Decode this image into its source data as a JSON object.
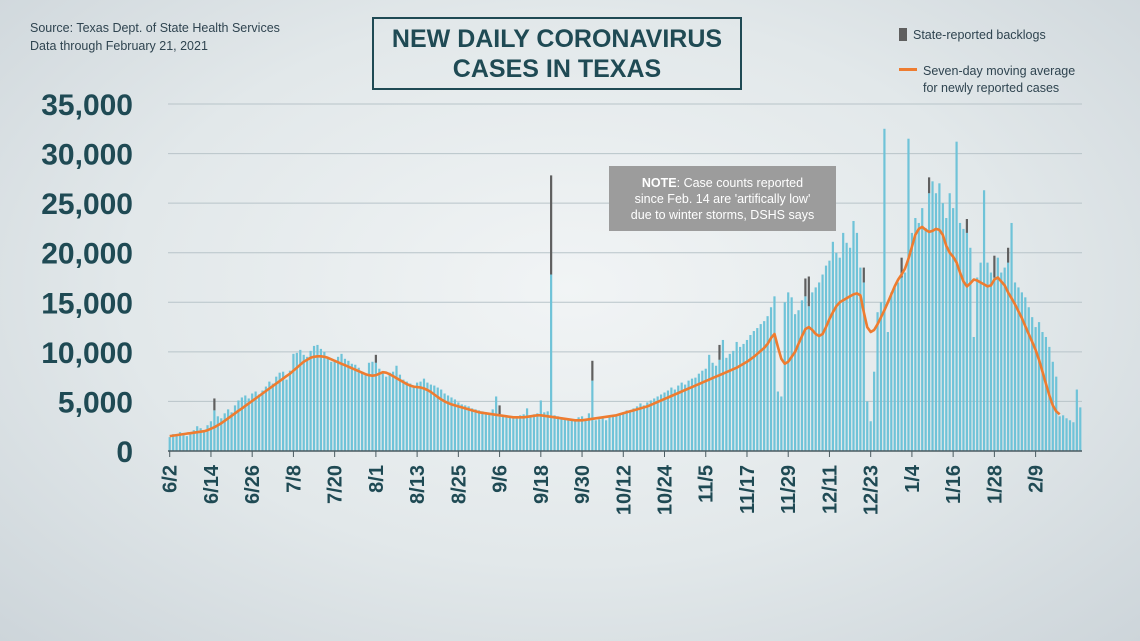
{
  "source": {
    "line1": "Source: Texas Dept. of State Health Services",
    "line2": "Data through  February 21, 2021"
  },
  "title": {
    "line1": "NEW DAILY CORONAVIRUS",
    "line2": "CASES IN TEXAS"
  },
  "legend": {
    "backlogs": "State-reported backlogs",
    "average_line1": "Seven-day moving average",
    "average_line2": "for newly reported cases"
  },
  "note": {
    "bold": "NOTE",
    "text1": ": Case counts reported",
    "text2": "since Feb. 14 are 'artifically low'",
    "text3": "due to winter storms, DSHS says"
  },
  "colors": {
    "bars": "#6fc3d8",
    "backlog": "#5f5f5f",
    "average": "#ee7c30",
    "axis_text": "#1f4a54",
    "grid": "#b8c4c9"
  },
  "chart_data": {
    "type": "bar",
    "ylim": [
      0,
      35000
    ],
    "yticks": [
      0,
      5000,
      10000,
      15000,
      20000,
      25000,
      30000,
      35000
    ],
    "ytick_labels": [
      "0",
      "5,000",
      "10,000",
      "15,000",
      "20,000",
      "25,000",
      "30,000",
      "35,000"
    ],
    "x_start": "2020-06-02",
    "xtick_labels": [
      "6/2",
      "6/14",
      "6/26",
      "7/8",
      "7/20",
      "8/1",
      "8/13",
      "8/25",
      "9/6",
      "9/18",
      "9/30",
      "10/12",
      "10/24",
      "11/5",
      "11/17",
      "11/29",
      "12/11",
      "12/23",
      "1/4",
      "1/16",
      "1/28",
      "2/9"
    ],
    "grid": true,
    "legend_position": "top-right",
    "series": [
      {
        "name": "State-reported backlogs",
        "type": "bar",
        "values": [
          1400,
          1700,
          1600,
          1900,
          1700,
          1500,
          1800,
          2100,
          2500,
          2300,
          2000,
          2600,
          3000,
          4100,
          3500,
          3300,
          3800,
          4200,
          3900,
          4600,
          5100,
          5400,
          5600,
          5300,
          5800,
          6000,
          5700,
          6100,
          6500,
          7000,
          6800,
          7500,
          7900,
          8000,
          7200,
          8100,
          9800,
          9900,
          10200,
          9700,
          9500,
          10100,
          10600,
          10700,
          10300,
          10000,
          9400,
          9000,
          9200,
          9500,
          9800,
          9300,
          9100,
          8800,
          8700,
          8400,
          8000,
          7800,
          8900,
          9000,
          8900,
          8300,
          7900,
          7500,
          7900,
          8000,
          8600,
          7700,
          7200,
          7000,
          6800,
          6500,
          6900,
          7000,
          7300,
          6900,
          6700,
          6600,
          6400,
          6200,
          5800,
          5600,
          5400,
          5200,
          4900,
          4700,
          4600,
          4500,
          4300,
          4200,
          4100,
          4000,
          3900,
          3800,
          4200,
          5500,
          3700,
          3600,
          3500,
          3400,
          3300,
          3500,
          3600,
          3700,
          4300,
          3600,
          3700,
          3800,
          5100,
          3900,
          4000,
          17800,
          3600,
          3500,
          3400,
          3300,
          3200,
          3100,
          3000,
          3400,
          3500,
          3200,
          3800,
          7100,
          3100,
          3200,
          3300,
          3100,
          3400,
          3500,
          3600,
          3700,
          3900,
          4100,
          3900,
          4300,
          4500,
          4800,
          4600,
          4900,
          5100,
          5300,
          5500,
          5700,
          5900,
          6100,
          6400,
          6200,
          6600,
          6900,
          6700,
          7100,
          7300,
          7400,
          7800,
          8100,
          8300,
          9700,
          8900,
          8600,
          9200,
          11200,
          9400,
          9800,
          10100,
          11000,
          10500,
          10800,
          11200,
          11700,
          12100,
          12400,
          12800,
          13100,
          13600,
          14500,
          15600,
          6000,
          5500,
          15000,
          16000,
          15500,
          13800,
          14200,
          15200,
          15600,
          14600,
          16000,
          16500,
          17000,
          17800,
          18700,
          19200,
          21100,
          20000,
          19500,
          22000,
          21000,
          20500,
          23200,
          22000,
          18500,
          17000,
          5000,
          3000,
          8000,
          14000,
          15000,
          32500,
          12000,
          16000,
          16500,
          17000,
          17500,
          18000,
          31500,
          22000,
          23500,
          23000,
          24500,
          22500,
          26000,
          27200,
          26000,
          27000,
          25000,
          23500,
          26000,
          24500,
          31200,
          23000,
          22400,
          22000,
          20500,
          11500,
          17500,
          19000,
          26300,
          19000,
          18000,
          17500,
          19500,
          18000,
          18500,
          19000,
          23000,
          17000,
          16500,
          16000,
          15500,
          14500,
          13500,
          12500,
          13000,
          12000,
          11500,
          10500,
          9000,
          7500,
          3500,
          3600,
          3300,
          3100,
          2900,
          6200,
          4400
        ],
        "backlog_days": {
          "13": 1200,
          "60": 800,
          "96": 900,
          "111": 10000,
          "123": 2000,
          "160": 1500,
          "185": 1800,
          "186": 3000,
          "202": 1500,
          "213": 2000,
          "221": 1600,
          "232": 1400,
          "240": 2200,
          "244": 1500
        }
      },
      {
        "name": "Seven-day moving average",
        "type": "line",
        "values": [
          1500,
          1550,
          1600,
          1650,
          1700,
          1750,
          1800,
          1850,
          1900,
          1950,
          2000,
          2100,
          2250,
          2400,
          2600,
          2800,
          3050,
          3300,
          3550,
          3800,
          4050,
          4300,
          4550,
          4800,
          5050,
          5300,
          5550,
          5800,
          6050,
          6300,
          6550,
          6800,
          7050,
          7300,
          7550,
          7800,
          8100,
          8400,
          8700,
          9000,
          9200,
          9400,
          9500,
          9550,
          9550,
          9500,
          9400,
          9250,
          9100,
          8950,
          8800,
          8650,
          8500,
          8350,
          8200,
          8050,
          7900,
          7750,
          7650,
          7600,
          7650,
          7800,
          7950,
          7900,
          7750,
          7550,
          7350,
          7150,
          6950,
          6750,
          6600,
          6500,
          6450,
          6400,
          6300,
          6150,
          5950,
          5700,
          5450,
          5200,
          5000,
          4850,
          4700,
          4600,
          4500,
          4400,
          4300,
          4200,
          4100,
          4000,
          3900,
          3850,
          3800,
          3750,
          3700,
          3650,
          3600,
          3550,
          3500,
          3450,
          3400,
          3400,
          3400,
          3400,
          3450,
          3500,
          3550,
          3600,
          3600,
          3550,
          3500,
          3450,
          3400,
          3350,
          3300,
          3250,
          3200,
          3150,
          3100,
          3100,
          3100,
          3150,
          3200,
          3250,
          3300,
          3350,
          3400,
          3450,
          3500,
          3550,
          3600,
          3700,
          3800,
          3900,
          4000,
          4100,
          4200,
          4300,
          4400,
          4500,
          4650,
          4800,
          4950,
          5100,
          5250,
          5400,
          5550,
          5700,
          5850,
          6000,
          6150,
          6300,
          6450,
          6600,
          6750,
          6900,
          7050,
          7200,
          7350,
          7500,
          7650,
          7800,
          7950,
          8100,
          8250,
          8400,
          8600,
          8800,
          9000,
          9250,
          9500,
          9800,
          10100,
          10400,
          10800,
          11400,
          11800,
          10500,
          9300,
          8800,
          9000,
          9500,
          10000,
          10800,
          11600,
          12300,
          12500,
          12200,
          11800,
          11600,
          11800,
          12500,
          13300,
          14000,
          14600,
          15000,
          15200,
          15400,
          15600,
          15800,
          15900,
          15700,
          14000,
          12500,
          12000,
          12200,
          12800,
          13500,
          14200,
          15000,
          15800,
          16600,
          17300,
          17800,
          18400,
          19400,
          20600,
          21800,
          22400,
          22600,
          22300,
          22100,
          22200,
          22400,
          22300,
          21800,
          20700,
          20000,
          19600,
          19000,
          18000,
          17100,
          16600,
          16900,
          17300,
          17200,
          17000,
          16800,
          16600,
          16700,
          17300,
          17500,
          17100,
          16700,
          16000,
          15400,
          14800,
          14100,
          13400,
          12600,
          11800,
          11000,
          10200,
          9200,
          8000,
          6800,
          5600,
          4600,
          4000,
          3700
        ]
      }
    ]
  }
}
